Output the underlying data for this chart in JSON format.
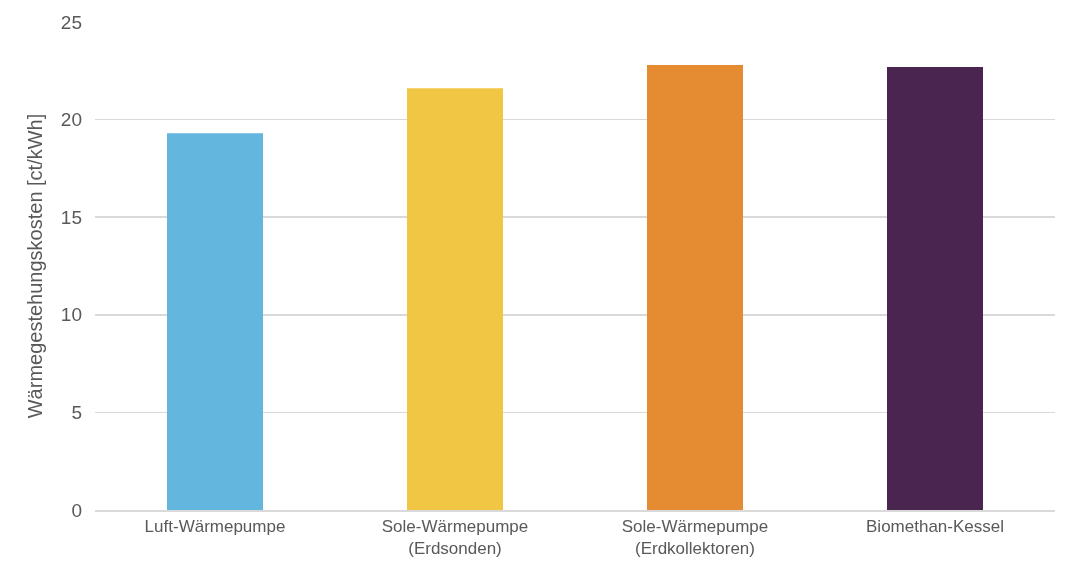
{
  "chart_data": {
    "type": "bar",
    "ylabel": "Wärmegestehungskosten [ct/kWh]",
    "categories": [
      "Luft-Wärmepumpe",
      "Sole-Wärmepumpe (Erdsonden)",
      "Sole-Wärmepumpe (Erdkollektoren)",
      "Biomethan-Kessel"
    ],
    "values": [
      19.3,
      21.6,
      22.8,
      22.7
    ],
    "colors": [
      "#63b6dd",
      "#f0c644",
      "#e58c32",
      "#4a2550"
    ],
    "ylim": [
      0,
      25
    ],
    "yticks": [
      0,
      5,
      10,
      15,
      20,
      25
    ],
    "grid": "y"
  }
}
